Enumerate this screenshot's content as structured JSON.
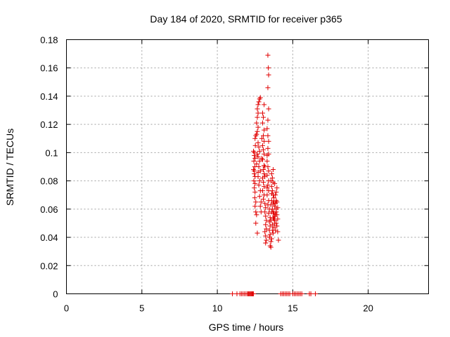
{
  "chart_data": {
    "type": "scatter",
    "title": "Day 184 of 2020, SRMTID for receiver p365",
    "xlabel": "GPS time / hours",
    "ylabel": "SRMTID / TECUs",
    "xlim": [
      0,
      24
    ],
    "ylim": [
      0,
      0.18
    ],
    "xticks": [
      0,
      5,
      10,
      15,
      20
    ],
    "xtick_labels": [
      "0",
      "5",
      "10",
      "15",
      "20"
    ],
    "yticks": [
      0,
      0.02,
      0.04,
      0.06,
      0.08,
      0.1,
      0.12,
      0.14,
      0.16,
      0.18
    ],
    "ytick_labels": [
      "0",
      "0.02",
      "0.04",
      "0.06",
      "0.08",
      "0.1",
      "0.12",
      "0.14",
      "0.16",
      "0.18"
    ],
    "grid": true,
    "marker": "+",
    "color": "#e00000",
    "series": [
      {
        "name": "SRMTID",
        "points": [
          [
            11.0,
            0
          ],
          [
            11.3,
            0
          ],
          [
            11.5,
            0
          ],
          [
            11.6,
            0
          ],
          [
            11.7,
            0
          ],
          [
            11.8,
            0
          ],
          [
            11.9,
            0
          ],
          [
            12.0,
            0
          ],
          [
            12.05,
            0
          ],
          [
            12.1,
            0
          ],
          [
            12.15,
            0
          ],
          [
            12.2,
            0
          ],
          [
            12.25,
            0
          ],
          [
            12.3,
            0
          ],
          [
            12.35,
            0
          ],
          [
            12.4,
            0
          ],
          [
            14.2,
            0
          ],
          [
            14.3,
            0
          ],
          [
            14.4,
            0
          ],
          [
            14.5,
            0
          ],
          [
            14.6,
            0
          ],
          [
            14.7,
            0
          ],
          [
            14.8,
            0
          ],
          [
            15.0,
            0
          ],
          [
            15.1,
            0
          ],
          [
            15.2,
            0
          ],
          [
            15.3,
            0
          ],
          [
            15.4,
            0
          ],
          [
            15.5,
            0
          ],
          [
            15.6,
            0
          ],
          [
            16.1,
            0
          ],
          [
            16.2,
            0
          ],
          [
            16.5,
            0
          ],
          [
            12.4,
            0.101
          ],
          [
            12.45,
            0.098
          ],
          [
            12.5,
            0.096
          ],
          [
            12.42,
            0.094
          ],
          [
            12.48,
            0.09
          ],
          [
            12.4,
            0.088
          ],
          [
            12.45,
            0.085
          ],
          [
            12.5,
            0.083
          ],
          [
            12.42,
            0.08
          ],
          [
            12.5,
            0.078
          ],
          [
            12.45,
            0.075
          ],
          [
            12.5,
            0.072
          ],
          [
            12.48,
            0.068
          ],
          [
            12.55,
            0.065
          ],
          [
            12.5,
            0.062
          ],
          [
            12.55,
            0.058
          ],
          [
            12.6,
            0.056
          ],
          [
            12.55,
            0.05
          ],
          [
            12.65,
            0.043
          ],
          [
            12.45,
            0.1
          ],
          [
            12.52,
            0.105
          ],
          [
            12.5,
            0.11
          ],
          [
            12.55,
            0.112
          ],
          [
            12.45,
            0.087
          ],
          [
            12.6,
            0.113
          ],
          [
            12.65,
            0.115
          ],
          [
            12.7,
            0.118
          ],
          [
            12.6,
            0.121
          ],
          [
            12.65,
            0.125
          ],
          [
            12.7,
            0.128
          ],
          [
            12.65,
            0.131
          ],
          [
            12.7,
            0.134
          ],
          [
            12.75,
            0.136
          ],
          [
            12.8,
            0.138
          ],
          [
            12.85,
            0.139
          ],
          [
            12.7,
            0.107
          ],
          [
            12.75,
            0.104
          ],
          [
            12.8,
            0.101
          ],
          [
            12.7,
            0.097
          ],
          [
            12.8,
            0.094
          ],
          [
            12.75,
            0.09
          ],
          [
            12.85,
            0.087
          ],
          [
            12.7,
            0.083
          ],
          [
            12.8,
            0.08
          ],
          [
            12.75,
            0.077
          ],
          [
            12.85,
            0.073
          ],
          [
            12.8,
            0.069
          ],
          [
            12.9,
            0.065
          ],
          [
            12.85,
            0.062
          ],
          [
            12.9,
            0.058
          ],
          [
            12.7,
            0.086
          ],
          [
            12.6,
            0.092
          ],
          [
            12.65,
            0.099
          ],
          [
            13.0,
            0.128
          ],
          [
            13.05,
            0.125
          ],
          [
            13.1,
            0.134
          ],
          [
            13.0,
            0.121
          ],
          [
            13.1,
            0.116
          ],
          [
            13.05,
            0.112
          ],
          [
            13.1,
            0.108
          ],
          [
            13.0,
            0.105
          ],
          [
            13.05,
            0.102
          ],
          [
            13.1,
            0.099
          ],
          [
            13.0,
            0.095
          ],
          [
            13.1,
            0.091
          ],
          [
            13.05,
            0.088
          ],
          [
            13.1,
            0.085
          ],
          [
            13.0,
            0.082
          ],
          [
            13.05,
            0.079
          ],
          [
            13.1,
            0.076
          ],
          [
            13.0,
            0.073
          ],
          [
            13.1,
            0.07
          ],
          [
            13.05,
            0.067
          ],
          [
            13.15,
            0.064
          ],
          [
            13.2,
            0.061
          ],
          [
            13.15,
            0.058
          ],
          [
            13.2,
            0.055
          ],
          [
            13.25,
            0.052
          ],
          [
            13.2,
            0.049
          ],
          [
            13.25,
            0.046
          ],
          [
            13.15,
            0.044
          ],
          [
            13.2,
            0.041
          ],
          [
            13.25,
            0.038
          ],
          [
            13.2,
            0.036
          ],
          [
            12.95,
            0.096
          ],
          [
            12.95,
            0.11
          ],
          [
            13.15,
            0.09
          ],
          [
            13.15,
            0.083
          ],
          [
            13.35,
            0.169
          ],
          [
            13.38,
            0.16
          ],
          [
            13.4,
            0.155
          ],
          [
            13.35,
            0.146
          ],
          [
            13.4,
            0.131
          ],
          [
            13.35,
            0.123
          ],
          [
            13.3,
            0.117
          ],
          [
            13.35,
            0.112
          ],
          [
            13.4,
            0.108
          ],
          [
            13.35,
            0.103
          ],
          [
            13.4,
            0.099
          ],
          [
            13.3,
            0.094
          ],
          [
            13.35,
            0.09
          ],
          [
            13.4,
            0.087
          ],
          [
            13.3,
            0.084
          ],
          [
            13.4,
            0.08
          ],
          [
            13.35,
            0.077
          ],
          [
            13.4,
            0.073
          ],
          [
            13.3,
            0.07
          ],
          [
            13.4,
            0.066
          ],
          [
            13.35,
            0.063
          ],
          [
            13.45,
            0.06
          ],
          [
            13.4,
            0.057
          ],
          [
            13.5,
            0.054
          ],
          [
            13.45,
            0.051
          ],
          [
            13.5,
            0.048
          ],
          [
            13.45,
            0.045
          ],
          [
            13.5,
            0.042
          ],
          [
            13.45,
            0.04
          ],
          [
            13.55,
            0.037
          ],
          [
            13.5,
            0.034
          ],
          [
            13.55,
            0.033
          ],
          [
            13.3,
            0.098
          ],
          [
            13.3,
            0.075
          ],
          [
            13.6,
            0.085
          ],
          [
            13.65,
            0.082
          ],
          [
            13.7,
            0.079
          ],
          [
            13.6,
            0.076
          ],
          [
            13.65,
            0.073
          ],
          [
            13.7,
            0.07
          ],
          [
            13.75,
            0.068
          ],
          [
            13.6,
            0.066
          ],
          [
            13.7,
            0.064
          ],
          [
            13.8,
            0.062
          ],
          [
            13.65,
            0.06
          ],
          [
            13.75,
            0.058
          ],
          [
            13.85,
            0.056
          ],
          [
            13.7,
            0.054
          ],
          [
            13.8,
            0.052
          ],
          [
            13.9,
            0.05
          ],
          [
            13.65,
            0.049
          ],
          [
            13.75,
            0.047
          ],
          [
            13.85,
            0.045
          ],
          [
            13.7,
            0.043
          ],
          [
            13.8,
            0.055
          ],
          [
            13.9,
            0.06
          ],
          [
            13.95,
            0.065
          ],
          [
            13.85,
            0.07
          ],
          [
            13.9,
            0.072
          ],
          [
            13.95,
            0.075
          ],
          [
            13.8,
            0.078
          ],
          [
            13.9,
            0.058
          ],
          [
            14.0,
            0.053
          ],
          [
            13.95,
            0.048
          ],
          [
            14.0,
            0.044
          ],
          [
            14.05,
            0.038
          ],
          [
            13.6,
            0.039
          ],
          [
            13.65,
            0.045
          ],
          [
            13.55,
            0.052
          ],
          [
            13.6,
            0.058
          ],
          [
            13.55,
            0.063
          ],
          [
            13.6,
            0.071
          ],
          [
            13.55,
            0.08
          ],
          [
            13.7,
            0.088
          ],
          [
            13.75,
            0.065
          ],
          [
            13.85,
            0.064
          ],
          [
            13.9,
            0.066
          ],
          [
            14.0,
            0.061
          ],
          [
            13.95,
            0.056
          ],
          [
            13.8,
            0.05
          ],
          [
            13.75,
            0.053
          ],
          [
            13.7,
            0.057
          ]
        ]
      }
    ]
  }
}
